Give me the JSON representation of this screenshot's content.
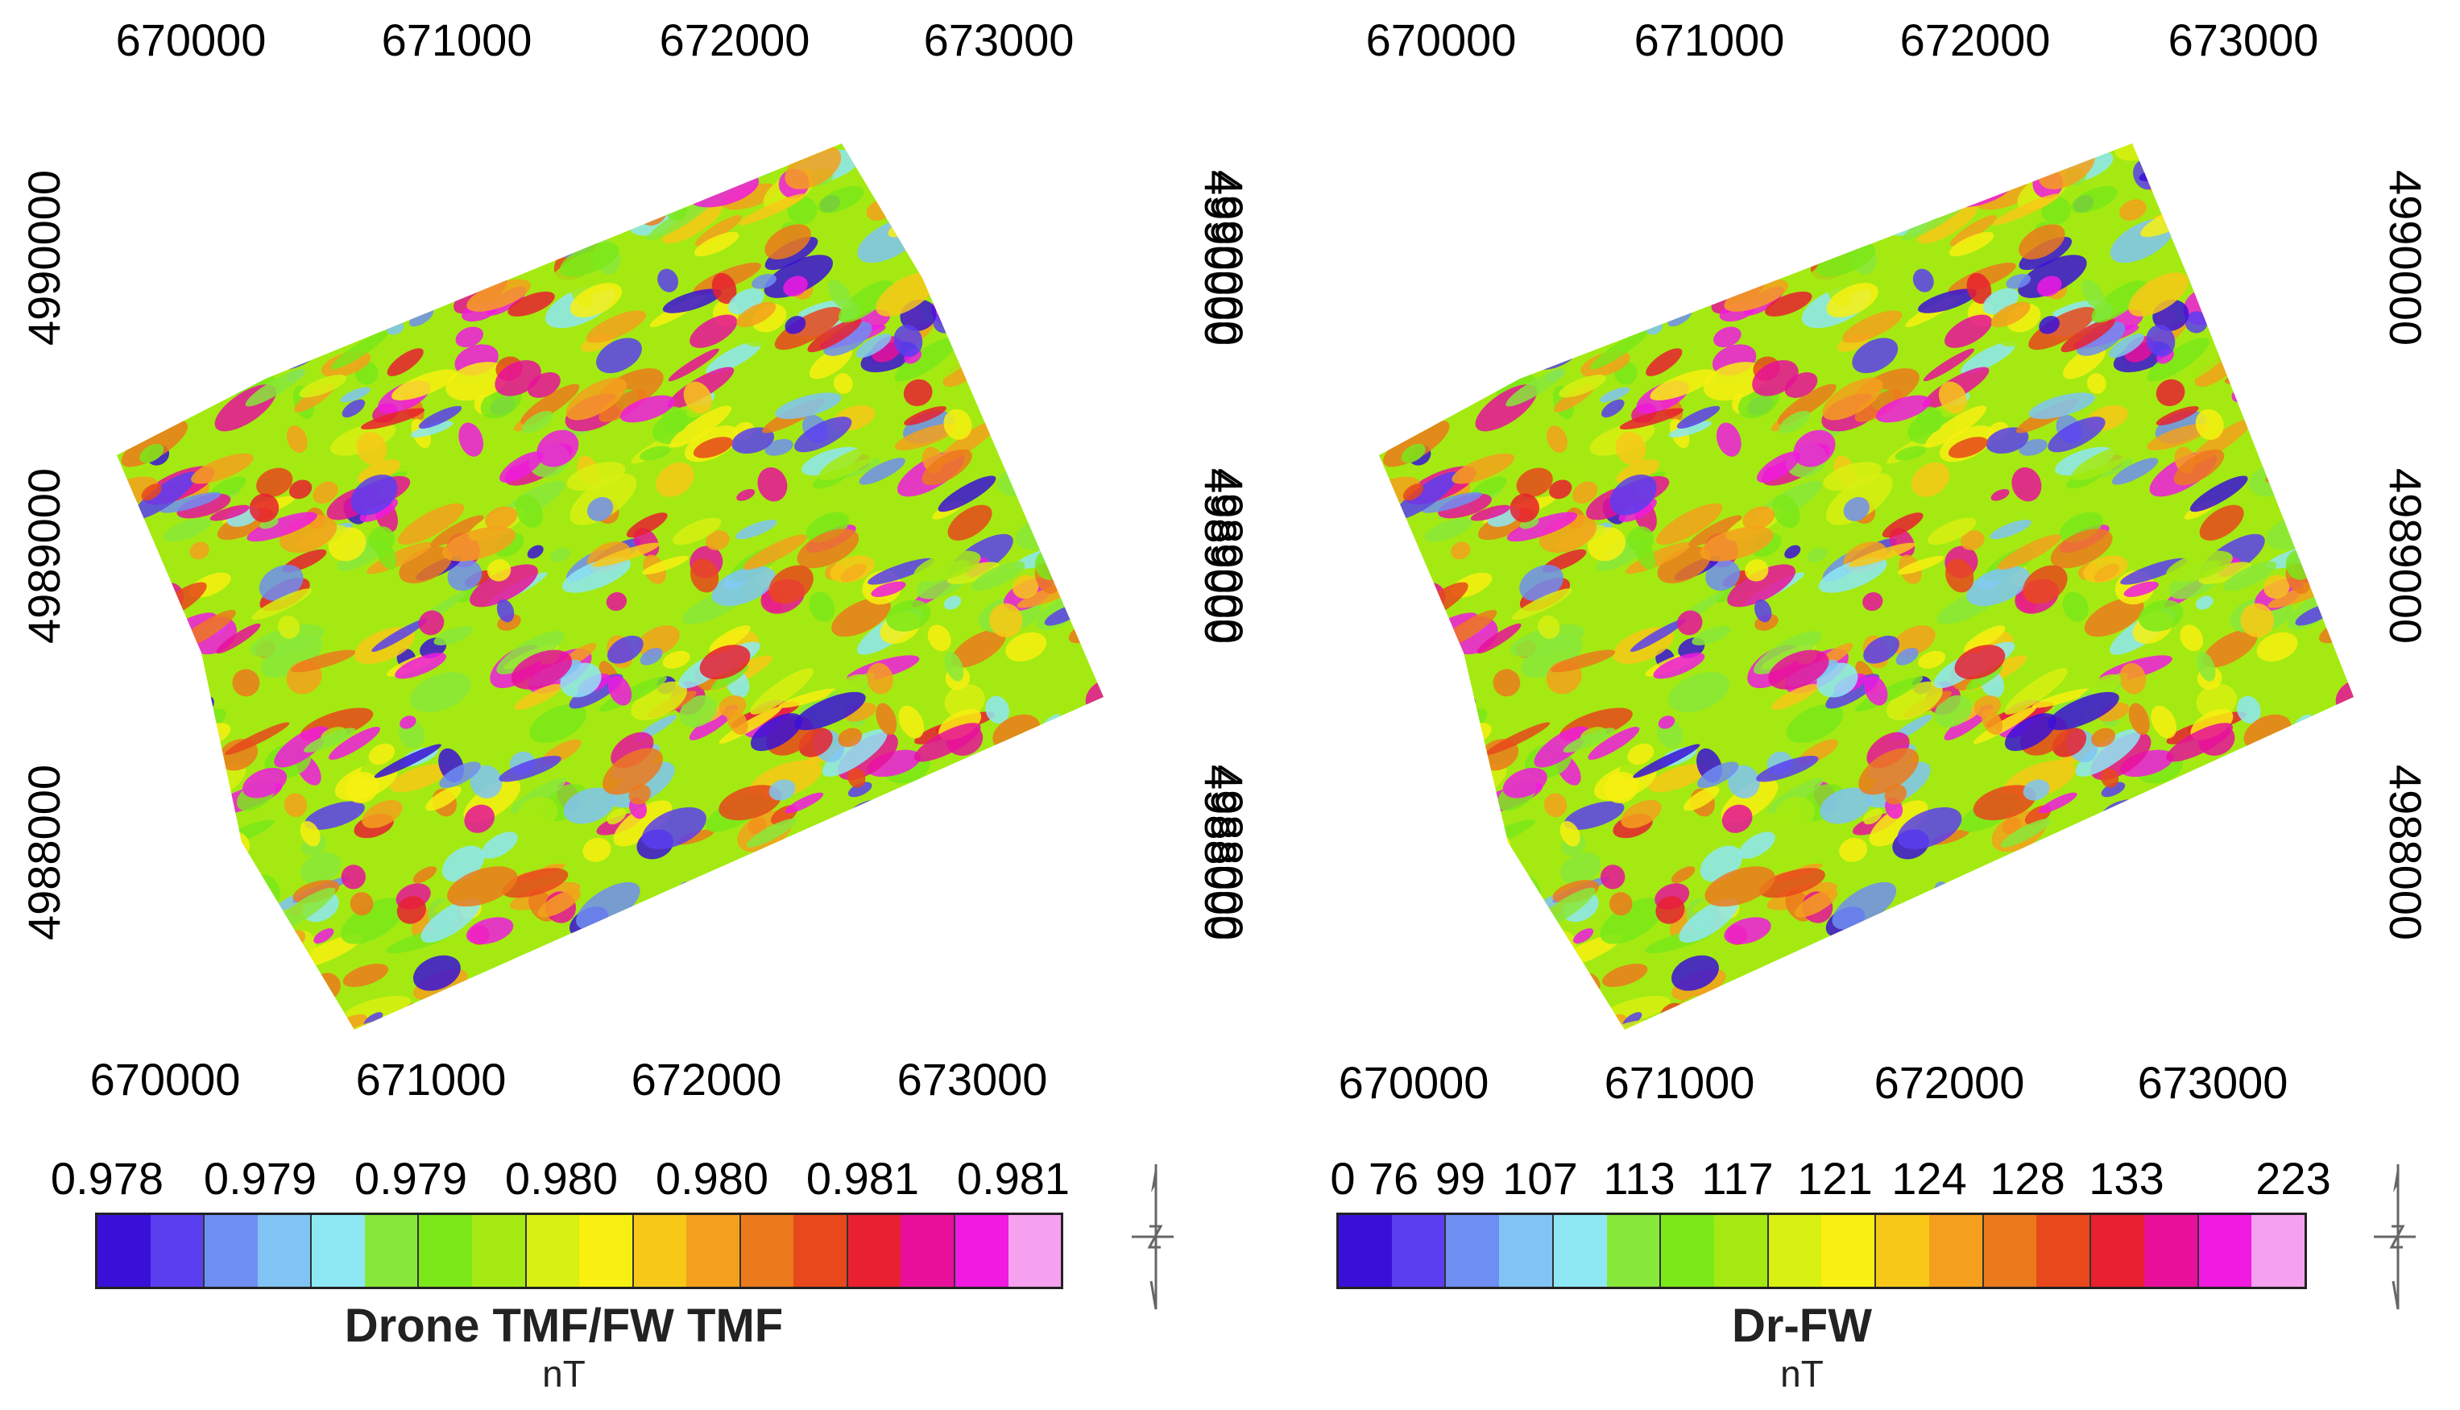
{
  "panels": [
    {
      "id": "left",
      "x_ticks": [
        "670000",
        "671000",
        "672000",
        "673000"
      ],
      "y_ticks": [
        "4990000",
        "4989000",
        "4988000"
      ],
      "colorbar_ticks": [
        "0.978",
        "0.979",
        "0.979",
        "0.980",
        "0.980",
        "0.981",
        "0.981"
      ],
      "colorbar_title": "Drone TMF/FW TMF",
      "colorbar_unit": "nT"
    },
    {
      "id": "right",
      "x_ticks": [
        "670000",
        "671000",
        "672000",
        "673000"
      ],
      "y_ticks": [
        "4990000",
        "4989000",
        "4988000"
      ],
      "colorbar_ticks": [
        "0",
        "76",
        "99",
        "107",
        "113",
        "117",
        "121",
        "124",
        "128",
        "133",
        "223"
      ],
      "colorbar_title": "Dr-FW",
      "colorbar_unit": "nT"
    }
  ],
  "palette": [
    "#3a10d8",
    "#5a3ef0",
    "#6f8ef2",
    "#7fc4f4",
    "#8ee8f4",
    "#88e83a",
    "#7be81a",
    "#a4ea12",
    "#d8f012",
    "#f8f010",
    "#f8c818",
    "#f4a01c",
    "#ec7a1c",
    "#e8481c",
    "#e82030",
    "#e8109a",
    "#f01ae0",
    "#f6a0f0"
  ],
  "north_icon": "north-arrow-icon"
}
